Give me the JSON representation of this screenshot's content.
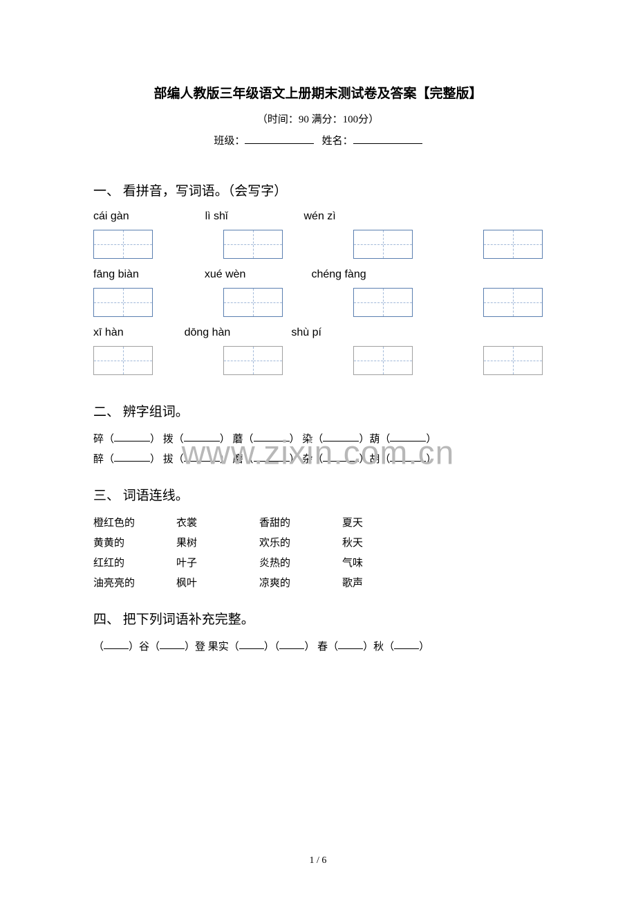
{
  "header": {
    "title": "部编人教版三年级语文上册期末测试卷及答案【完整版】",
    "time_score": "（时间：90   满分：100分）",
    "class_label": "班级：",
    "name_label": "姓名："
  },
  "section1": {
    "header": "一、 看拼音，写词语。（会写字）",
    "rows": [
      [
        "cái   gàn",
        "lì   shǐ",
        "wén  zì"
      ],
      [
        "fāng   biàn",
        "xué  wèn",
        "chéng fàng"
      ],
      [
        "xī    hàn",
        "dōng  hàn",
        "shù  pí"
      ]
    ]
  },
  "section2": {
    "header": "二、 辨字组词。",
    "line1": {
      "c1": "碎（",
      "c2": "） 拨（",
      "c3": "） 蘑（",
      "c4": "）  染（",
      "c5": "）葫（",
      "c6": "）"
    },
    "line2": {
      "c1": "醉（",
      "c2": "） 拔（",
      "c3": "） 磨（",
      "c4": "）  杂（",
      "c5": "）胡（",
      "c6": "）"
    }
  },
  "section3": {
    "header": "三、 词语连线。",
    "left": [
      [
        "橙红色的",
        "衣裳",
        "香甜的",
        "夏天"
      ],
      [
        "黄黄的",
        "果树",
        "欢乐的",
        "秋天"
      ],
      [
        "红红的",
        "叶子",
        "炎热的",
        "气味"
      ],
      [
        "油亮亮的",
        "枫叶",
        "凉爽的",
        "歌声"
      ]
    ]
  },
  "section4": {
    "header": "四、 把下列词语补充完整。",
    "line1": {
      "p1": " （",
      "p2": "）谷（",
      "p3": "）登    果实（",
      "p4": "）（",
      "p5": "）      春（",
      "p6": "）秋（",
      "p7": "）"
    }
  },
  "watermark": "www.zixin.com.cn",
  "page": "1 / 6",
  "colors": {
    "text": "#000000",
    "box_border": "#5b7fb0",
    "dashed": "#a0b8d8",
    "watermark": "#b8b8b8",
    "background": "#ffffff"
  }
}
